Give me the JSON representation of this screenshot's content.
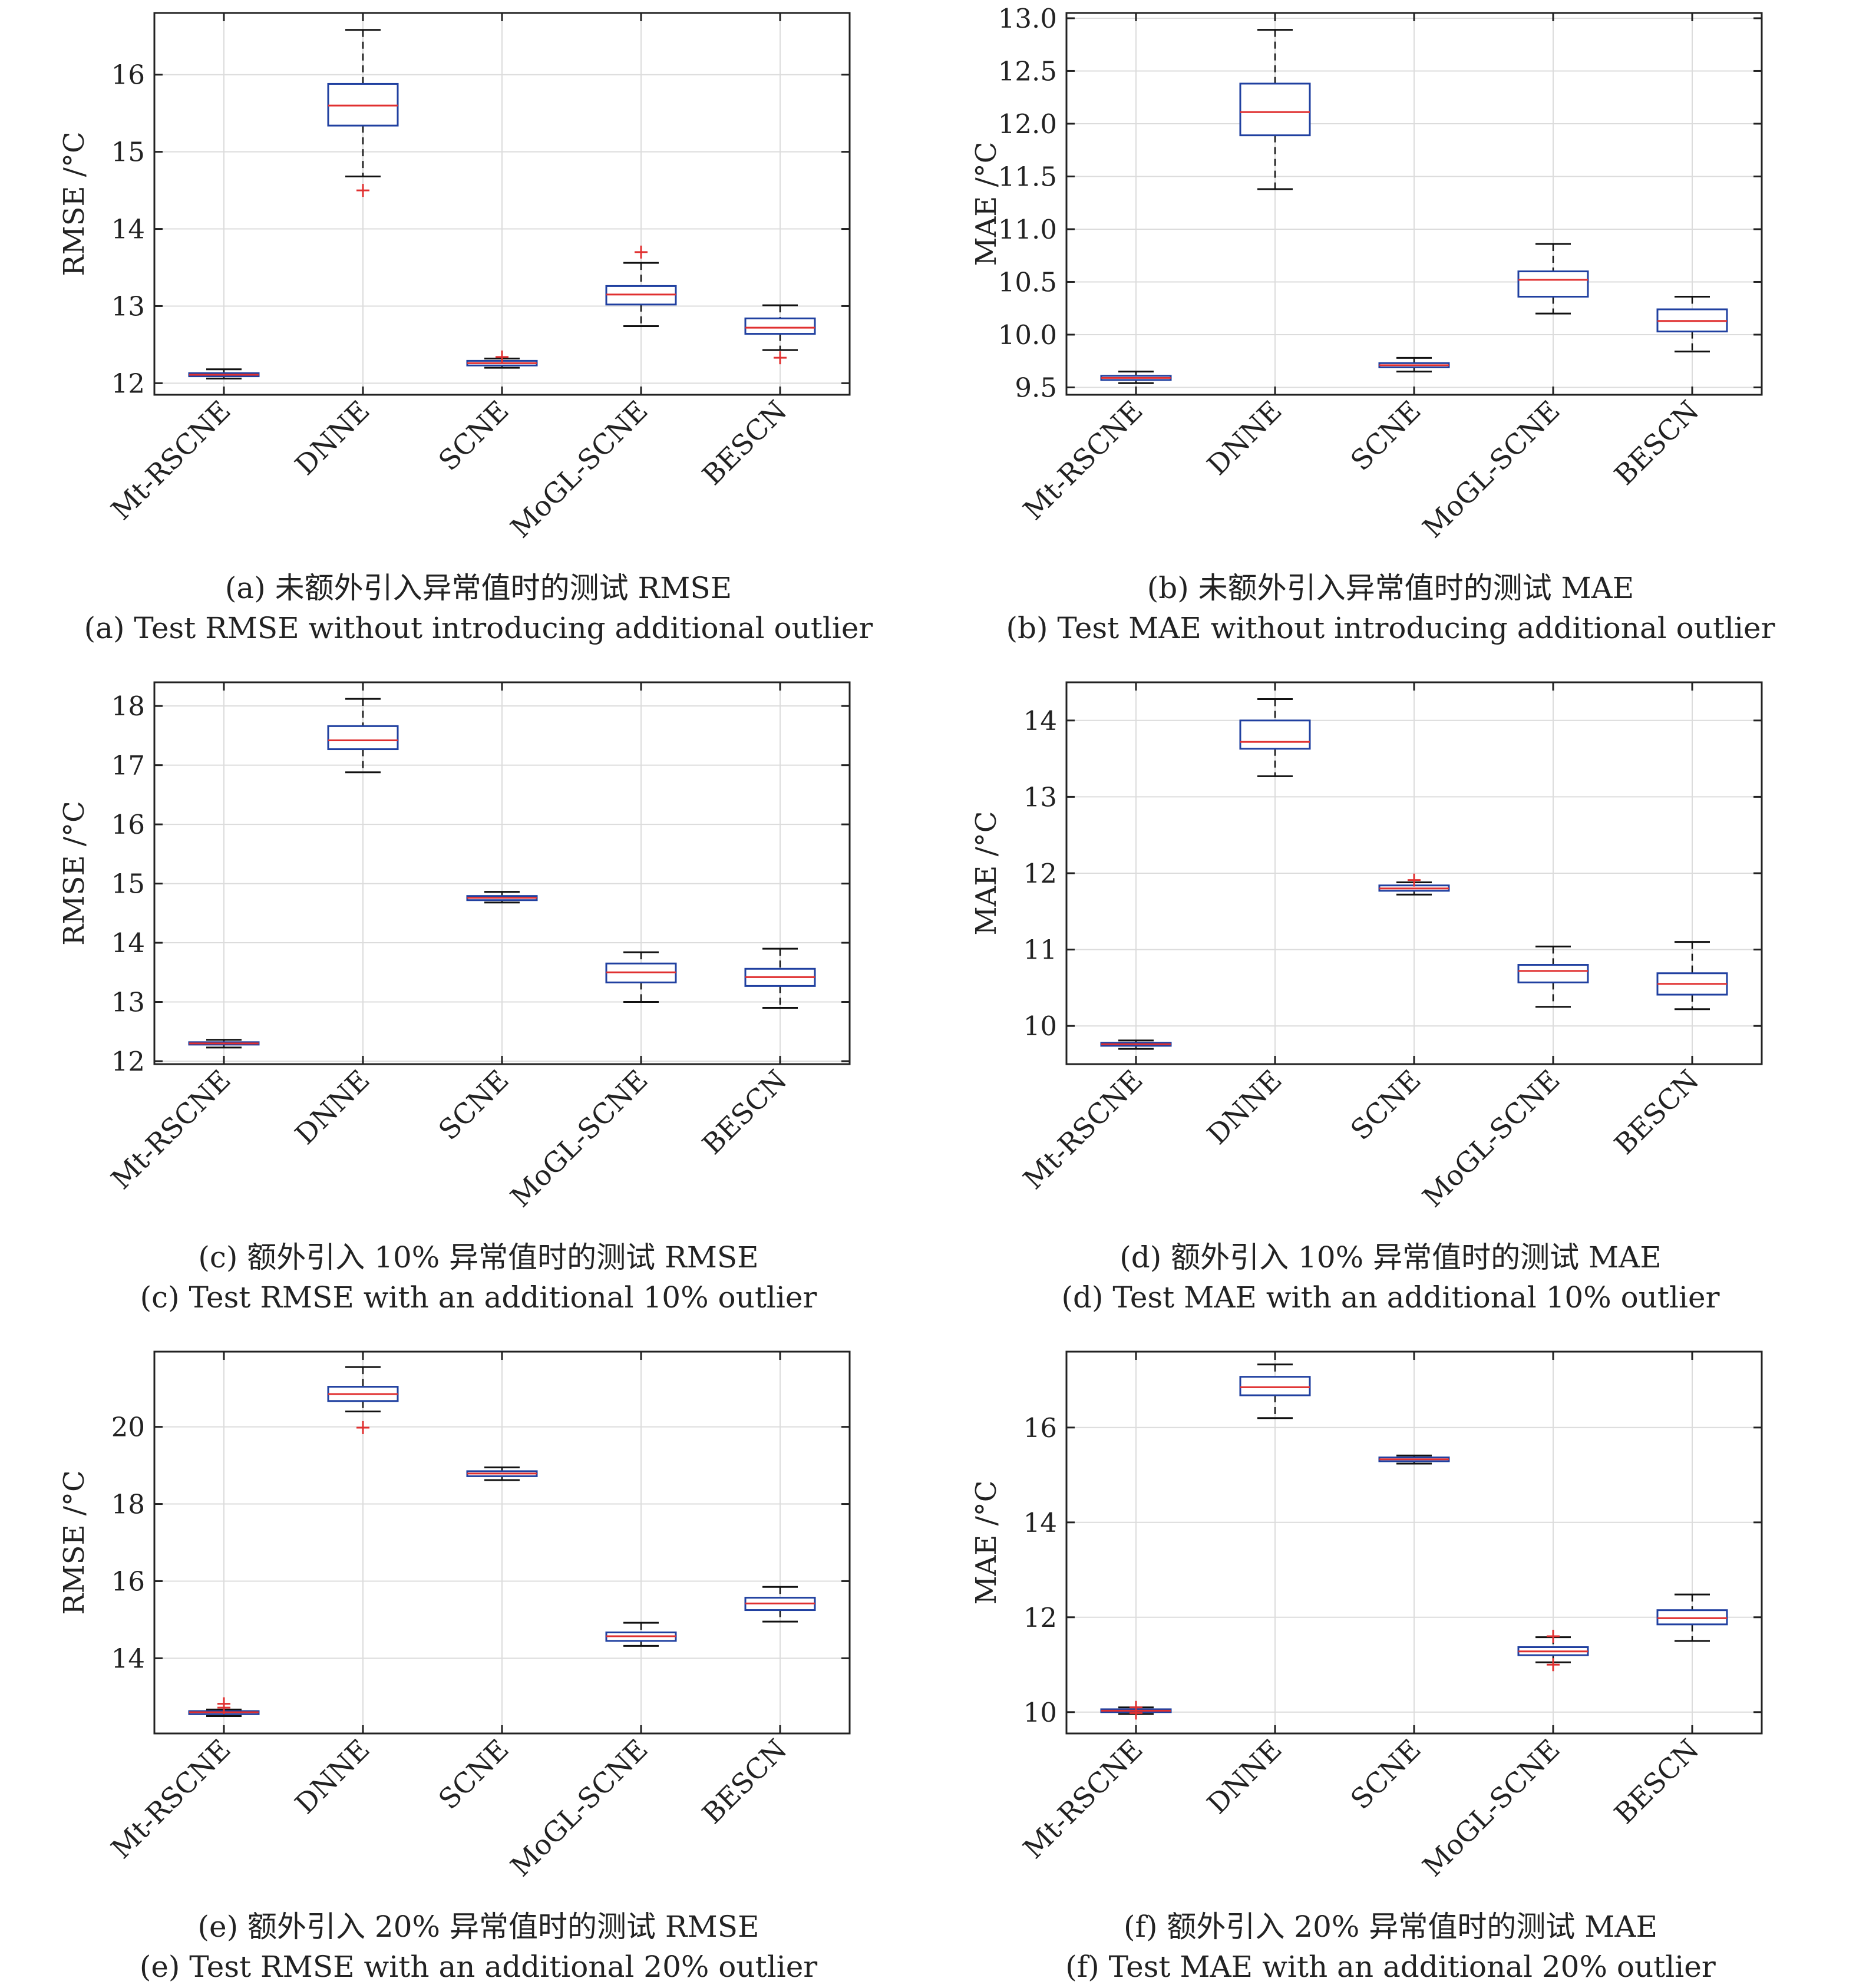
{
  "figure": {
    "panels_count": 6
  },
  "colors": {
    "box": "#2040a0",
    "median": "#e03030",
    "outlier": "#e03030",
    "whisker": "#111111",
    "grid": "#dcdcdc",
    "axis": "#222222"
  },
  "chart_data": [
    {
      "id": "a",
      "type": "box",
      "ylabel": "RMSE /°C",
      "ylim": [
        11.85,
        16.8
      ],
      "yticks": [
        12,
        13,
        14,
        15,
        16
      ],
      "grid": true,
      "categories": [
        "Mt-RSCNE",
        "DNNE",
        "SCNE",
        "MoGL-SCNE",
        "BESCN"
      ],
      "boxes": [
        {
          "min": 12.06,
          "q1": 12.09,
          "median": 12.11,
          "q3": 12.13,
          "max": 12.18,
          "outliers": []
        },
        {
          "min": 14.68,
          "q1": 15.34,
          "median": 15.6,
          "q3": 15.88,
          "max": 16.58,
          "outliers": [
            14.5
          ]
        },
        {
          "min": 12.2,
          "q1": 12.23,
          "median": 12.26,
          "q3": 12.29,
          "max": 12.32,
          "outliers": [
            12.34
          ]
        },
        {
          "min": 12.74,
          "q1": 13.02,
          "median": 13.15,
          "q3": 13.26,
          "max": 13.56,
          "outliers": [
            13.7
          ]
        },
        {
          "min": 12.43,
          "q1": 12.64,
          "median": 12.72,
          "q3": 12.84,
          "max": 13.01,
          "outliers": [
            12.33
          ]
        }
      ],
      "caption_zh": "(a) 未额外引入异常值时的测试 RMSE",
      "caption_en": "(a) Test RMSE without introducing additional outlier"
    },
    {
      "id": "b",
      "type": "box",
      "ylabel": "MAE /°C",
      "ylim": [
        9.43,
        13.05
      ],
      "yticks": [
        9.5,
        10.0,
        10.5,
        11.0,
        11.5,
        12.0,
        12.5,
        13.0
      ],
      "ytick_labels": [
        "9.5",
        "10.0",
        "10.5",
        "11.0",
        "11.5",
        "12.0",
        "12.5",
        "13.0"
      ],
      "grid": true,
      "categories": [
        "Mt-RSCNE",
        "DNNE",
        "SCNE",
        "MoGL-SCNE",
        "BESCN"
      ],
      "boxes": [
        {
          "min": 9.54,
          "q1": 9.57,
          "median": 9.59,
          "q3": 9.61,
          "max": 9.65,
          "outliers": []
        },
        {
          "min": 11.38,
          "q1": 11.89,
          "median": 12.11,
          "q3": 12.38,
          "max": 12.89,
          "outliers": []
        },
        {
          "min": 9.65,
          "q1": 9.69,
          "median": 9.71,
          "q3": 9.73,
          "max": 9.78,
          "outliers": []
        },
        {
          "min": 10.2,
          "q1": 10.36,
          "median": 10.52,
          "q3": 10.6,
          "max": 10.86,
          "outliers": []
        },
        {
          "min": 9.84,
          "q1": 10.03,
          "median": 10.13,
          "q3": 10.24,
          "max": 10.36,
          "outliers": []
        }
      ],
      "caption_zh": "(b) 未额外引入异常值时的测试 MAE",
      "caption_en": "(b) Test MAE without introducing additional outlier"
    },
    {
      "id": "c",
      "type": "box",
      "ylabel": "RMSE /°C",
      "ylim": [
        11.95,
        18.4
      ],
      "yticks": [
        12,
        13,
        14,
        15,
        16,
        17,
        18
      ],
      "grid": true,
      "categories": [
        "Mt-RSCNE",
        "DNNE",
        "SCNE",
        "MoGL-SCNE",
        "BESCN"
      ],
      "boxes": [
        {
          "min": 12.23,
          "q1": 12.28,
          "median": 12.3,
          "q3": 12.32,
          "max": 12.36,
          "outliers": []
        },
        {
          "min": 16.88,
          "q1": 17.27,
          "median": 17.42,
          "q3": 17.66,
          "max": 18.12,
          "outliers": []
        },
        {
          "min": 14.68,
          "q1": 14.72,
          "median": 14.76,
          "q3": 14.79,
          "max": 14.86,
          "outliers": []
        },
        {
          "min": 13.0,
          "q1": 13.33,
          "median": 13.5,
          "q3": 13.65,
          "max": 13.84,
          "outliers": []
        },
        {
          "min": 12.9,
          "q1": 13.27,
          "median": 13.42,
          "q3": 13.56,
          "max": 13.9,
          "outliers": []
        }
      ],
      "caption_zh": "(c) 额外引入 10% 异常值时的测试 RMSE",
      "caption_en": "(c) Test RMSE with an additional 10% outlier"
    },
    {
      "id": "d",
      "type": "box",
      "ylabel": "MAE /°C",
      "ylim": [
        9.5,
        14.5
      ],
      "yticks": [
        10,
        11,
        12,
        13,
        14
      ],
      "grid": true,
      "categories": [
        "Mt-RSCNE",
        "DNNE",
        "SCNE",
        "MoGL-SCNE",
        "BESCN"
      ],
      "boxes": [
        {
          "min": 9.7,
          "q1": 9.74,
          "median": 9.76,
          "q3": 9.78,
          "max": 9.81,
          "outliers": []
        },
        {
          "min": 13.27,
          "q1": 13.63,
          "median": 13.72,
          "q3": 14.0,
          "max": 14.28,
          "outliers": []
        },
        {
          "min": 11.72,
          "q1": 11.77,
          "median": 11.8,
          "q3": 11.84,
          "max": 11.88,
          "outliers": [
            11.91
          ]
        },
        {
          "min": 10.25,
          "q1": 10.57,
          "median": 10.72,
          "q3": 10.8,
          "max": 11.04,
          "outliers": []
        },
        {
          "min": 10.22,
          "q1": 10.41,
          "median": 10.55,
          "q3": 10.69,
          "max": 11.1,
          "outliers": []
        }
      ],
      "caption_zh": "(d) 额外引入 10% 异常值时的测试 MAE",
      "caption_en": "(d) Test MAE with an additional 10% outlier"
    },
    {
      "id": "e",
      "type": "box",
      "ylabel": "RMSE /°C",
      "ylim": [
        12.05,
        21.95
      ],
      "yticks": [
        14,
        16,
        18,
        20
      ],
      "grid": true,
      "categories": [
        "Mt-RSCNE",
        "DNNE",
        "SCNE",
        "MoGL-SCNE",
        "BESCN"
      ],
      "boxes": [
        {
          "min": 12.5,
          "q1": 12.55,
          "median": 12.6,
          "q3": 12.63,
          "max": 12.67,
          "outliers": [
            12.72,
            12.82
          ]
        },
        {
          "min": 20.4,
          "q1": 20.67,
          "median": 20.85,
          "q3": 21.04,
          "max": 21.55,
          "outliers": [
            19.98
          ]
        },
        {
          "min": 18.62,
          "q1": 18.72,
          "median": 18.79,
          "q3": 18.85,
          "max": 18.95,
          "outliers": []
        },
        {
          "min": 14.32,
          "q1": 14.45,
          "median": 14.57,
          "q3": 14.67,
          "max": 14.92,
          "outliers": []
        },
        {
          "min": 14.95,
          "q1": 15.25,
          "median": 15.42,
          "q3": 15.57,
          "max": 15.85,
          "outliers": []
        }
      ],
      "caption_zh": "(e) 额外引入 20% 异常值时的测试 RMSE",
      "caption_en": "(e) Test RMSE with an additional 20% outlier"
    },
    {
      "id": "f",
      "type": "box",
      "ylabel": "MAE /°C",
      "ylim": [
        9.55,
        17.6
      ],
      "yticks": [
        10,
        12,
        14,
        16
      ],
      "grid": true,
      "categories": [
        "Mt-RSCNE",
        "DNNE",
        "SCNE",
        "MoGL-SCNE",
        "BESCN"
      ],
      "boxes": [
        {
          "min": 9.96,
          "q1": 10.0,
          "median": 10.03,
          "q3": 10.06,
          "max": 10.1,
          "outliers": [
            9.98,
            10.1
          ]
        },
        {
          "min": 16.2,
          "q1": 16.68,
          "median": 16.85,
          "q3": 17.07,
          "max": 17.33,
          "outliers": []
        },
        {
          "min": 15.24,
          "q1": 15.29,
          "median": 15.33,
          "q3": 15.37,
          "max": 15.41,
          "outliers": []
        },
        {
          "min": 11.05,
          "q1": 11.2,
          "median": 11.28,
          "q3": 11.37,
          "max": 11.58,
          "outliers": [
            11.6,
            11.0
          ]
        },
        {
          "min": 11.5,
          "q1": 11.85,
          "median": 11.98,
          "q3": 12.15,
          "max": 12.48,
          "outliers": []
        }
      ],
      "caption_zh": "(f) 额外引入 20% 异常值时的测试 MAE",
      "caption_en": "(f) Test MAE with an additional 20% outlier"
    }
  ]
}
